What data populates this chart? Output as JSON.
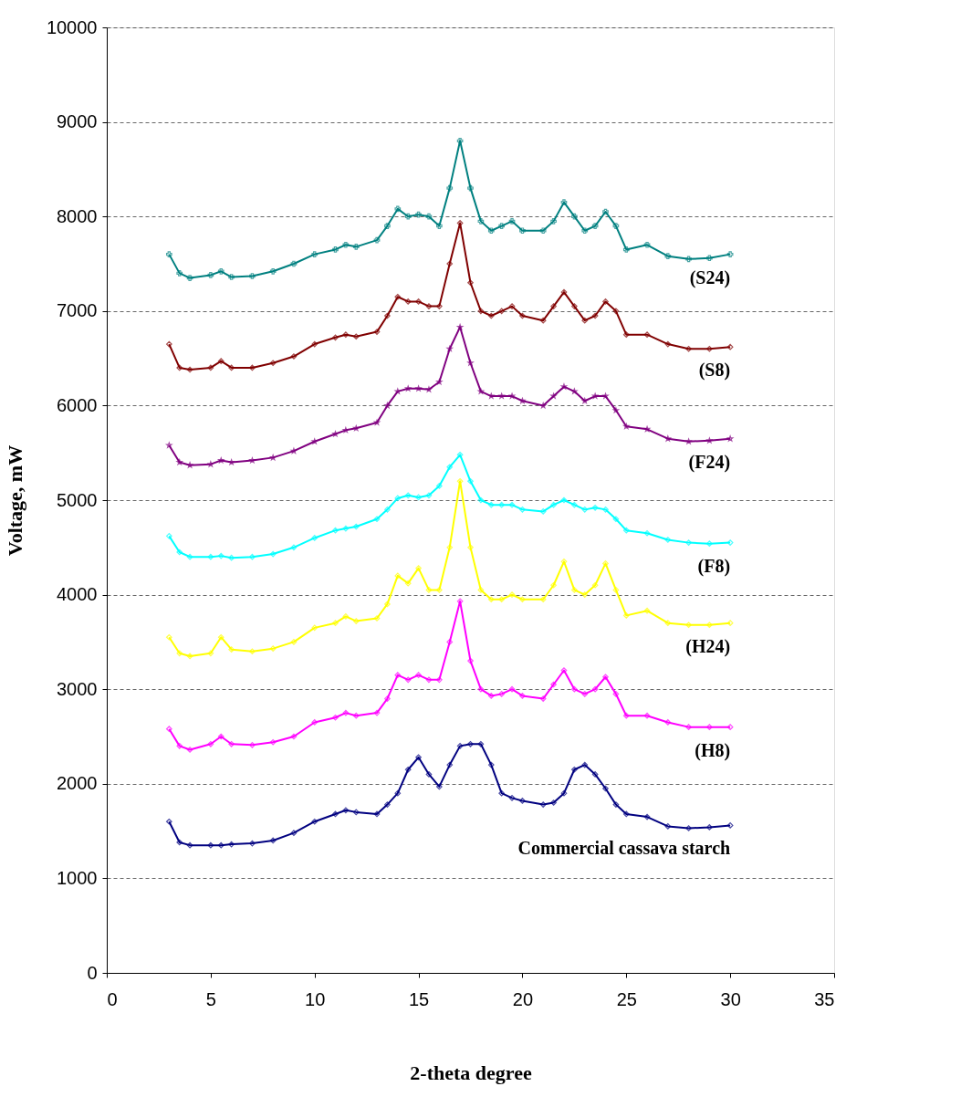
{
  "chart_data": {
    "type": "line",
    "xlabel": "2-theta degree",
    "ylabel": "Voltage, mW",
    "x": [
      3,
      3.5,
      4,
      5,
      5.5,
      6,
      7,
      8,
      9,
      10,
      11,
      11.5,
      12,
      13,
      13.5,
      14,
      14.5,
      15,
      15.5,
      16,
      16.5,
      17,
      17.5,
      18,
      18.5,
      19,
      19.5,
      20,
      21,
      21.5,
      22,
      22.5,
      23,
      23.5,
      24,
      24.5,
      25,
      26,
      27,
      28,
      29,
      30
    ],
    "series": [
      {
        "name": "(S24)",
        "color": "#008080",
        "marker": "cross",
        "values": [
          7600,
          7400,
          7350,
          7380,
          7420,
          7360,
          7370,
          7420,
          7500,
          7600,
          7650,
          7700,
          7680,
          7750,
          7900,
          8080,
          8000,
          8020,
          8000,
          7900,
          8300,
          8800,
          8300,
          7950,
          7850,
          7900,
          7950,
          7850,
          7850,
          7950,
          8150,
          8000,
          7850,
          7900,
          8050,
          7900,
          7650,
          7700,
          7580,
          7550,
          7560,
          7600
        ]
      },
      {
        "name": "(S8)",
        "color": "#800000",
        "values": [
          6650,
          6400,
          6380,
          6400,
          6470,
          6400,
          6400,
          6450,
          6520,
          6650,
          6720,
          6750,
          6730,
          6780,
          6950,
          7150,
          7100,
          7100,
          7050,
          7050,
          7500,
          7930,
          7300,
          7000,
          6950,
          7000,
          7050,
          6950,
          6900,
          7050,
          7200,
          7050,
          6900,
          6950,
          7100,
          7000,
          6750,
          6750,
          6650,
          6600,
          6600,
          6620
        ]
      },
      {
        "name": "(F24)",
        "color": "#800080",
        "marker": "star",
        "values": [
          5580,
          5400,
          5370,
          5380,
          5420,
          5400,
          5420,
          5450,
          5520,
          5620,
          5700,
          5740,
          5760,
          5820,
          6000,
          6150,
          6180,
          6180,
          6170,
          6250,
          6600,
          6830,
          6450,
          6150,
          6100,
          6100,
          6100,
          6050,
          6000,
          6100,
          6200,
          6150,
          6050,
          6100,
          6100,
          5950,
          5780,
          5750,
          5650,
          5620,
          5630,
          5650
        ]
      },
      {
        "name": "(F8)",
        "color": "#00ffff",
        "values": [
          4620,
          4450,
          4400,
          4400,
          4410,
          4390,
          4400,
          4430,
          4500,
          4600,
          4680,
          4700,
          4720,
          4800,
          4900,
          5020,
          5050,
          5030,
          5050,
          5150,
          5350,
          5480,
          5200,
          5000,
          4950,
          4950,
          4950,
          4900,
          4880,
          4950,
          5000,
          4950,
          4900,
          4920,
          4900,
          4800,
          4680,
          4650,
          4580,
          4550,
          4540,
          4550
        ]
      },
      {
        "name": "(H24)",
        "color": "#ffff00",
        "values": [
          3550,
          3380,
          3350,
          3380,
          3550,
          3420,
          3400,
          3430,
          3500,
          3650,
          3700,
          3770,
          3720,
          3750,
          3900,
          4200,
          4120,
          4280,
          4050,
          4050,
          4500,
          5200,
          4500,
          4050,
          3950,
          3950,
          4000,
          3950,
          3950,
          4100,
          4350,
          4050,
          4000,
          4100,
          4330,
          4050,
          3780,
          3830,
          3700,
          3680,
          3680,
          3700
        ]
      },
      {
        "name": "(H8)",
        "color": "#ff00ff",
        "values": [
          2580,
          2400,
          2360,
          2420,
          2500,
          2420,
          2410,
          2440,
          2500,
          2650,
          2700,
          2750,
          2720,
          2750,
          2900,
          3150,
          3100,
          3150,
          3100,
          3100,
          3500,
          3930,
          3300,
          3000,
          2930,
          2950,
          3000,
          2930,
          2900,
          3050,
          3200,
          3000,
          2950,
          3000,
          3130,
          2950,
          2720,
          2720,
          2650,
          2600,
          2600,
          2600
        ]
      },
      {
        "name": "Commercial cassava starch",
        "color": "#000080",
        "values": [
          1600,
          1380,
          1350,
          1350,
          1350,
          1360,
          1370,
          1400,
          1480,
          1600,
          1680,
          1720,
          1700,
          1680,
          1780,
          1900,
          2150,
          2280,
          2100,
          1970,
          2200,
          2400,
          2420,
          2420,
          2200,
          1900,
          1850,
          1820,
          1780,
          1800,
          1900,
          2150,
          2200,
          2100,
          1950,
          1780,
          1680,
          1650,
          1550,
          1530,
          1540,
          1560
        ]
      }
    ],
    "xlim": [
      0,
      35
    ],
    "xticks": [
      0,
      5,
      10,
      15,
      20,
      25,
      30,
      35
    ],
    "ylim": [
      0,
      10000
    ],
    "yticks": [
      0,
      1000,
      2000,
      3000,
      4000,
      5000,
      6000,
      7000,
      8000,
      9000,
      10000
    ],
    "grid": "y",
    "legend": false,
    "marker": "diamond",
    "line_style": "solid"
  }
}
